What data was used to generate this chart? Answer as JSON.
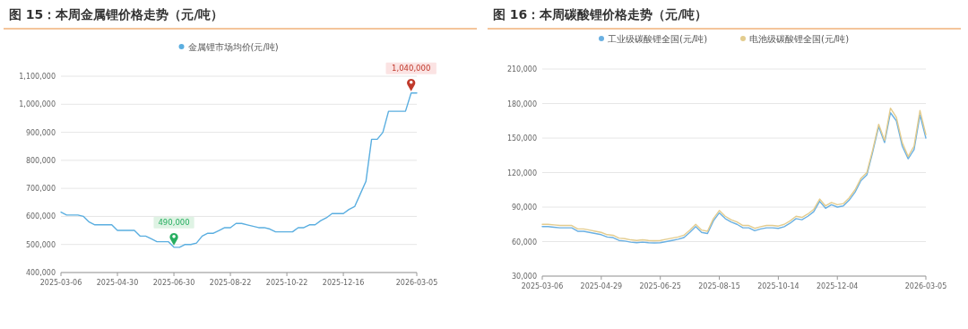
{
  "chart_data": [
    {
      "type": "line",
      "title": "图 15：本周金属锂价格走势（元/吨）",
      "categories": [
        "2025-03-06",
        null,
        null,
        null,
        null,
        null,
        null,
        null,
        null,
        null,
        "2025-04-30",
        null,
        null,
        null,
        null,
        null,
        null,
        null,
        null,
        null,
        "2025-06-30",
        null,
        null,
        null,
        null,
        null,
        null,
        null,
        null,
        null,
        "2025-08-22",
        null,
        null,
        null,
        null,
        null,
        null,
        null,
        null,
        null,
        "2025-10-22",
        null,
        null,
        null,
        null,
        null,
        null,
        null,
        null,
        null,
        "2025-12-16",
        null,
        null,
        null,
        null,
        null,
        null,
        null,
        null,
        null,
        null,
        null,
        null,
        "2026-03-05"
      ],
      "series": [
        {
          "name": "金属锂市场均价(元/吨)",
          "color": "#5aaee0",
          "values": [
            615000,
            605000,
            605000,
            605000,
            600000,
            580000,
            570000,
            570000,
            570000,
            570000,
            550000,
            550000,
            550000,
            550000,
            530000,
            530000,
            520000,
            510000,
            510000,
            510000,
            490000,
            490000,
            500000,
            500000,
            505000,
            530000,
            540000,
            540000,
            550000,
            560000,
            560000,
            575000,
            575000,
            570000,
            565000,
            560000,
            560000,
            555000,
            545000,
            545000,
            545000,
            545000,
            560000,
            560000,
            570000,
            570000,
            585000,
            595000,
            610000,
            610000,
            610000,
            625000,
            635000,
            680000,
            725000,
            875000,
            875000,
            900000,
            975000,
            975000,
            975000,
            975000,
            1040000,
            1040000
          ]
        }
      ],
      "ylim": [
        400000,
        1100000
      ],
      "yticks": [
        {
          "value": 400000,
          "label": "400,000"
        },
        {
          "value": 500000,
          "label": "500,000"
        },
        {
          "value": 600000,
          "label": "600,000"
        },
        {
          "value": 700000,
          "label": "700,000"
        },
        {
          "value": 800000,
          "label": "800,000"
        },
        {
          "value": 900000,
          "label": "900,000"
        },
        {
          "value": 1000000,
          "label": "1,000,000"
        },
        {
          "value": 1100000,
          "label": "1,100,000"
        }
      ],
      "grid": "y",
      "legend": "top",
      "annotations": [
        {
          "text": "490,000",
          "x": "2025-06-30",
          "y": 490000
        },
        {
          "text": "1,040,000",
          "y": 1040000
        }
      ]
    },
    {
      "type": "line",
      "title": "图 16：本周碳酸锂价格走势（元/吨）",
      "categories": [
        "2025-03-06",
        null,
        null,
        null,
        null,
        null,
        null,
        null,
        null,
        null,
        "2025-04-29",
        null,
        null,
        null,
        null,
        null,
        null,
        null,
        null,
        null,
        "2025-06-25",
        null,
        null,
        null,
        null,
        null,
        null,
        null,
        null,
        null,
        "2025-08-15",
        null,
        null,
        null,
        null,
        null,
        null,
        null,
        null,
        null,
        "2025-10-14",
        null,
        null,
        null,
        null,
        null,
        null,
        null,
        null,
        null,
        "2025-12-04",
        null,
        null,
        null,
        null,
        null,
        null,
        null,
        null,
        null,
        null,
        null,
        null,
        null,
        null,
        "2026-03-05"
      ],
      "series": [
        {
          "name": "工业级碳酸锂全国(元/吨)",
          "color": "#6ab0e2",
          "values": [
            73000,
            73000,
            72500,
            72000,
            72000,
            72000,
            69000,
            69000,
            68000,
            67000,
            66000,
            64000,
            63500,
            61000,
            60500,
            59500,
            59000,
            59500,
            59000,
            58800,
            59000,
            60000,
            61000,
            62000,
            63500,
            68000,
            73000,
            68000,
            67000,
            78000,
            85000,
            80000,
            77000,
            75000,
            72000,
            72000,
            69500,
            71000,
            72000,
            72000,
            71500,
            73000,
            76000,
            80000,
            79000,
            82000,
            86000,
            95000,
            89000,
            92000,
            90000,
            91000,
            96000,
            103000,
            113000,
            118000,
            138000,
            160000,
            146000,
            172000,
            165000,
            143000,
            132000,
            140000,
            170000,
            150000
          ]
        },
        {
          "name": "电池级碳酸锂全国(元/吨)",
          "color": "#e3cc8e",
          "values": [
            75000,
            75000,
            74500,
            74000,
            74000,
            74000,
            71000,
            71000,
            70000,
            69000,
            68000,
            66000,
            65500,
            63000,
            62500,
            61500,
            61000,
            61500,
            61000,
            60800,
            61000,
            62000,
            63000,
            64000,
            65500,
            70000,
            75000,
            70000,
            69000,
            80000,
            87000,
            82000,
            79000,
            77000,
            74000,
            74000,
            71500,
            73000,
            74000,
            74000,
            73500,
            75000,
            78000,
            82000,
            81000,
            84000,
            88000,
            97000,
            91000,
            94000,
            92000,
            93000,
            98000,
            105000,
            115000,
            120000,
            140000,
            162000,
            148000,
            176000,
            168000,
            146000,
            134000,
            143000,
            174000,
            153000
          ]
        }
      ],
      "ylim": [
        30000,
        210000
      ],
      "yticks": [
        {
          "value": 30000,
          "label": "30,000"
        },
        {
          "value": 60000,
          "label": "60,000"
        },
        {
          "value": 90000,
          "label": "90,000"
        },
        {
          "value": 120000,
          "label": "120,000"
        },
        {
          "value": 150000,
          "label": "150,000"
        },
        {
          "value": 180000,
          "label": "180,000"
        },
        {
          "value": 210000,
          "label": "210,000"
        }
      ],
      "grid": "y",
      "legend": "top"
    }
  ]
}
